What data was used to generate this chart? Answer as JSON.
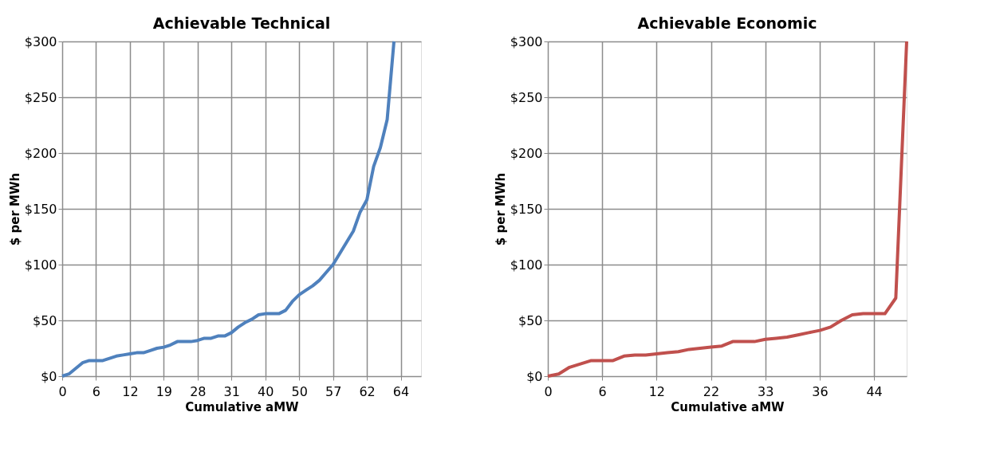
{
  "chart_data": [
    {
      "type": "line",
      "title": "Achievable Technical",
      "xlabel": "Cumulative aMW",
      "ylabel": "$ per MWh",
      "grid": true,
      "marker": "none",
      "line_style": "solid",
      "categories": [
        "0",
        null,
        null,
        null,
        null,
        "6",
        null,
        null,
        null,
        null,
        "12",
        null,
        null,
        null,
        null,
        "19",
        null,
        null,
        null,
        null,
        "28",
        null,
        null,
        null,
        null,
        "31",
        null,
        null,
        null,
        null,
        "40",
        null,
        null,
        null,
        null,
        "50",
        null,
        null,
        null,
        null,
        "57",
        null,
        null,
        null,
        null,
        "62",
        null,
        null,
        null,
        null,
        "64",
        null,
        null,
        null
      ],
      "ylim": [
        0,
        300
      ],
      "yticks": [
        {
          "value": 0,
          "label": "$0"
        },
        {
          "value": 50,
          "label": "$50"
        },
        {
          "value": 100,
          "label": "$100"
        },
        {
          "value": 150,
          "label": "$150"
        },
        {
          "value": 200,
          "label": "$200"
        },
        {
          "value": 250,
          "label": "$250"
        },
        {
          "value": 300,
          "label": "$300"
        }
      ],
      "series": [
        {
          "color": "#4f81bd",
          "values": [
            0,
            2,
            7,
            12,
            14,
            14,
            14,
            16,
            18,
            19,
            20,
            21,
            21,
            23,
            25,
            26,
            28,
            31,
            31,
            31,
            32,
            34,
            34,
            36,
            36,
            39,
            44,
            48,
            51,
            55,
            56,
            56,
            56,
            59,
            67,
            73,
            77,
            81,
            86,
            93,
            100,
            110,
            120,
            130,
            147,
            158,
            188,
            205,
            230,
            300,
            null,
            null,
            null,
            null
          ]
        }
      ]
    },
    {
      "type": "line",
      "title": "Achievable Economic",
      "xlabel": "Cumulative aMW",
      "ylabel": "$ per MWh",
      "grid": true,
      "marker": "none",
      "line_style": "solid",
      "categories": [
        "0",
        null,
        null,
        null,
        null,
        "6",
        null,
        null,
        null,
        null,
        "12",
        null,
        null,
        null,
        null,
        "22",
        null,
        null,
        null,
        null,
        "33",
        null,
        null,
        null,
        null,
        "36",
        null,
        null,
        null,
        null,
        "44",
        null,
        null,
        null
      ],
      "ylim": [
        0,
        300
      ],
      "yticks": [
        {
          "value": 0,
          "label": "$0"
        },
        {
          "value": 50,
          "label": "$50"
        },
        {
          "value": 100,
          "label": "$100"
        },
        {
          "value": 150,
          "label": "$150"
        },
        {
          "value": 200,
          "label": "$200"
        },
        {
          "value": 250,
          "label": "$250"
        },
        {
          "value": 300,
          "label": "$300"
        }
      ],
      "series": [
        {
          "color": "#c0504d",
          "values": [
            0,
            2,
            8,
            11,
            14,
            14,
            14,
            18,
            19,
            19,
            20,
            21,
            22,
            24,
            25,
            26,
            27,
            31,
            31,
            31,
            33,
            34,
            35,
            37,
            39,
            41,
            44,
            50,
            55,
            56,
            56,
            56,
            70,
            300
          ]
        }
      ]
    }
  ]
}
